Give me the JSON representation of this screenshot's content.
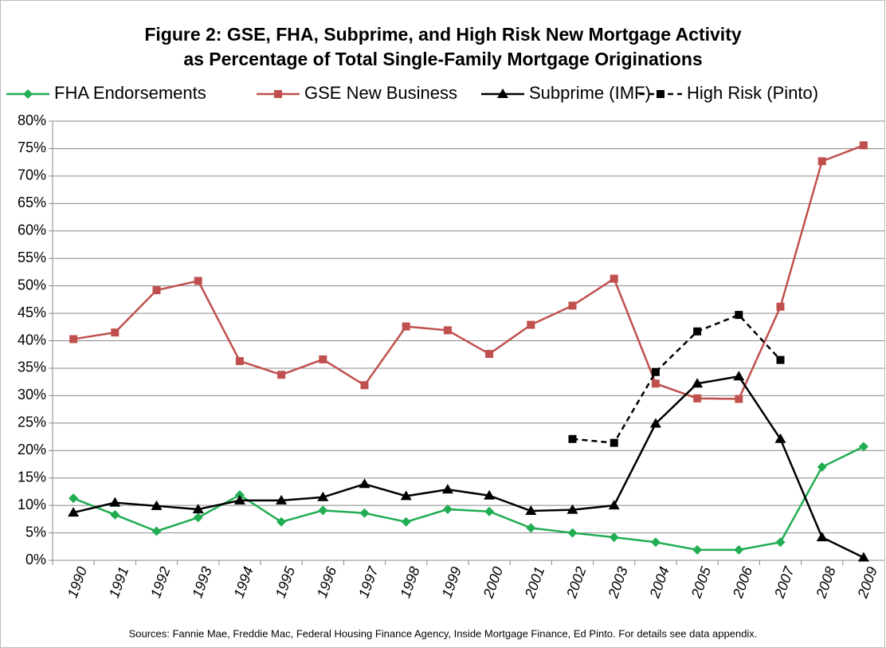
{
  "chart_data": {
    "type": "line",
    "title": "Figure 2: GSE, FHA, Subprime, and High Risk New Mortgage Activity",
    "subtitle": "as Percentage of Total Single-Family Mortgage Originations",
    "note": "Sources: Fannie Mae, Freddie Mac, Federal Housing Finance Agency, Inside Mortgage Finance, Ed Pinto. For details see data appendix.",
    "categories": [
      "1990",
      "1991",
      "1992",
      "1993",
      "1994",
      "1995",
      "1996",
      "1997",
      "1998",
      "1999",
      "2000",
      "2001",
      "2002",
      "2003",
      "2004",
      "2005",
      "2006",
      "2007",
      "2008",
      "2009"
    ],
    "series": [
      {
        "name": "FHA Endorsements",
        "color": "#21ad52",
        "marker": "diamond",
        "dashed": false,
        "values": [
          11.3,
          8.3,
          5.3,
          7.8,
          11.9,
          7.0,
          9.1,
          8.6,
          7.0,
          9.3,
          8.9,
          5.9,
          5.0,
          4.2,
          3.3,
          1.9,
          1.9,
          3.3,
          17.0,
          20.7
        ]
      },
      {
        "name": "GSE New Business",
        "color": "#c0504d",
        "marker": "square",
        "dashed": false,
        "values": [
          40.3,
          41.5,
          49.2,
          50.9,
          36.3,
          33.8,
          36.6,
          31.9,
          42.6,
          41.9,
          37.6,
          42.9,
          46.4,
          51.3,
          32.2,
          29.5,
          29.4,
          46.2,
          72.7,
          75.6
        ]
      },
      {
        "name": "Subprime (IMF)",
        "color": "#000000",
        "marker": "triangle",
        "dashed": false,
        "values": [
          8.7,
          10.5,
          9.9,
          9.3,
          10.9,
          10.9,
          11.5,
          13.9,
          11.7,
          12.9,
          11.8,
          9.0,
          9.2,
          10.0,
          24.9,
          32.2,
          33.5,
          22.1,
          4.2,
          0.5
        ]
      },
      {
        "name": "High Risk (Pinto)",
        "color": "#000000",
        "marker": "square",
        "dashed": true,
        "values": [
          null,
          null,
          null,
          null,
          null,
          null,
          null,
          null,
          null,
          null,
          null,
          null,
          22.1,
          21.4,
          34.3,
          41.7,
          44.7,
          36.5,
          null,
          null
        ]
      }
    ],
    "ylim": [
      0,
      80
    ],
    "yticks": [
      {
        "value": 0,
        "label": "0%"
      },
      {
        "value": 5,
        "label": "5%"
      },
      {
        "value": 10,
        "label": "10%"
      },
      {
        "value": 15,
        "label": "15%"
      },
      {
        "value": 20,
        "label": "20%"
      },
      {
        "value": 25,
        "label": "25%"
      },
      {
        "value": 30,
        "label": "30%"
      },
      {
        "value": 35,
        "label": "35%"
      },
      {
        "value": 40,
        "label": "40%"
      },
      {
        "value": 45,
        "label": "45%"
      },
      {
        "value": 50,
        "label": "50%"
      },
      {
        "value": 55,
        "label": "55%"
      },
      {
        "value": 60,
        "label": "60%"
      },
      {
        "value": 65,
        "label": "65%"
      },
      {
        "value": 70,
        "label": "70%"
      },
      {
        "value": 75,
        "label": "75%"
      },
      {
        "value": 80,
        "label": "80%"
      }
    ],
    "grid": true,
    "legend": "top"
  }
}
